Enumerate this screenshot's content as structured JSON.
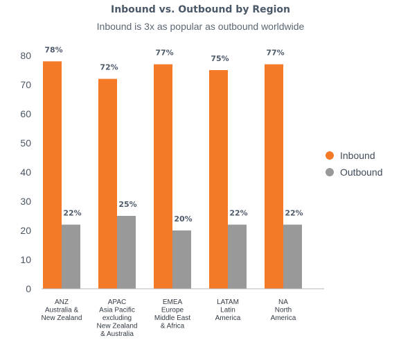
{
  "colors": {
    "inbound": "#f47a27",
    "outbound": "#999999",
    "axis": "#b5b5b5"
  },
  "chart_data": {
    "type": "bar",
    "title": "Inbound vs. Outbound by Region",
    "subtitle": "Inbound is 3x as popular as outbound worldwide",
    "categories": [
      [
        "ANZ",
        "Australia &",
        "New Zealand"
      ],
      [
        "APAC",
        "Asia Pacific",
        "excluding",
        "New Zealand",
        "& Australia"
      ],
      [
        "EMEA",
        "Europe",
        "Middle East",
        "& Africa"
      ],
      [
        "LATAM",
        "Latin",
        "America"
      ],
      [
        "NA",
        "North",
        "America"
      ]
    ],
    "series": [
      {
        "name": "Inbound",
        "values": [
          78,
          72,
          77,
          75,
          77
        ],
        "labels": [
          "78%",
          "72%",
          "77%",
          "75%",
          "77%"
        ]
      },
      {
        "name": "Outbound",
        "values": [
          22,
          25,
          20,
          22,
          22
        ],
        "labels": [
          "22%",
          "25%",
          "20%",
          "22%",
          "22%"
        ]
      }
    ],
    "yticks": [
      "0",
      "10",
      "20",
      "30",
      "40",
      "50",
      "60",
      "70",
      "80"
    ],
    "ylim": [
      0,
      80
    ],
    "grid": false,
    "legend": "right"
  }
}
